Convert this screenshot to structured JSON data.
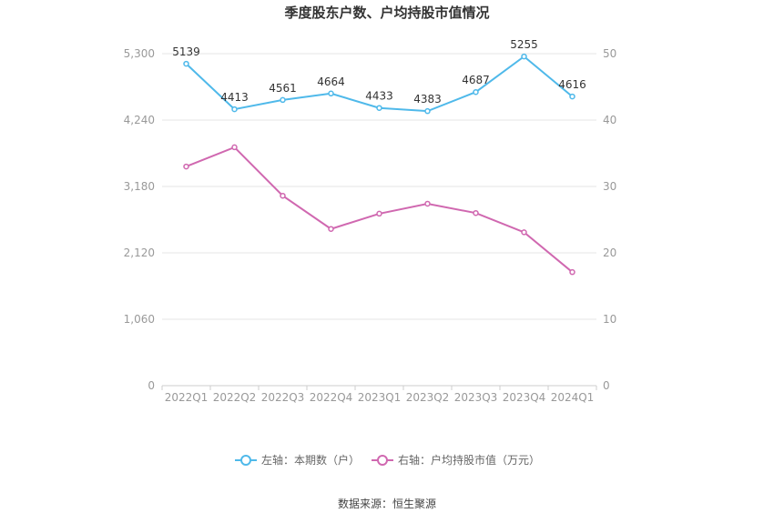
{
  "chart_data": {
    "type": "line",
    "title": "季度股东户数、户均持股市值情况",
    "categories": [
      "2022Q1",
      "2022Q2",
      "2022Q3",
      "2022Q4",
      "2023Q1",
      "2023Q2",
      "2023Q3",
      "2023Q4",
      "2024Q1"
    ],
    "left_axis": {
      "ticks": [
        "0",
        "1,060",
        "2,120",
        "3,180",
        "4,240",
        "5,300"
      ],
      "ylim": [
        0,
        5300
      ]
    },
    "right_axis": {
      "ticks": [
        "0",
        "10",
        "20",
        "30",
        "40",
        "50"
      ],
      "ylim": [
        0,
        50
      ]
    },
    "series": [
      {
        "name": "左轴：本期数（户）",
        "axis": "left",
        "color": "#4fb9ea",
        "values": [
          5139,
          4413,
          4561,
          4664,
          4433,
          4383,
          4687,
          5255,
          4616
        ],
        "labels": [
          "5139",
          "4413",
          "4561",
          "4664",
          "4433",
          "4383",
          "4687",
          "5255",
          "4616"
        ]
      },
      {
        "name": "右轴：户均持股市值（万元）",
        "axis": "right",
        "color": "#d068b0",
        "values": [
          33.0,
          35.9,
          28.6,
          23.6,
          25.9,
          27.4,
          26.0,
          23.1,
          17.1
        ]
      }
    ],
    "grid": true,
    "legend_position": "bottom-center"
  },
  "source": "数据来源：恒生聚源"
}
